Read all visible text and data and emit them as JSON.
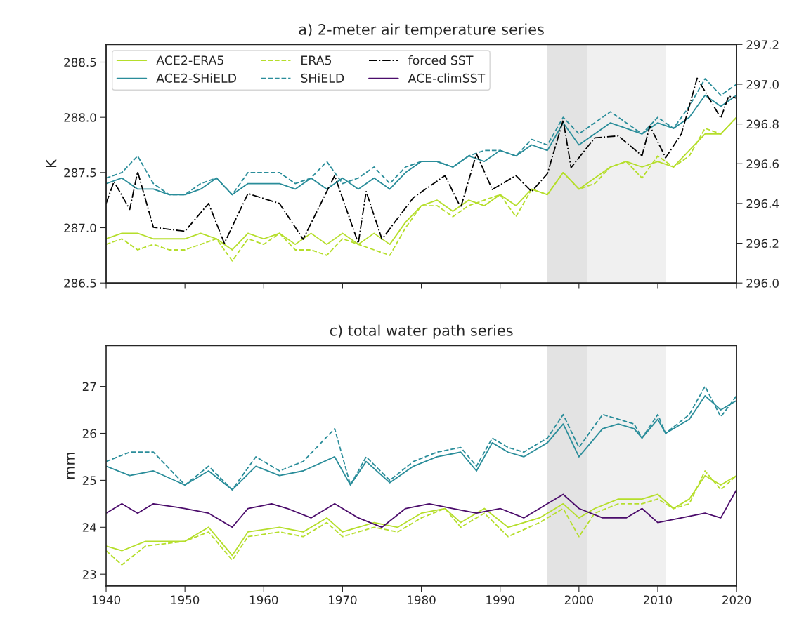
{
  "chart_data": [
    {
      "type": "line",
      "title": "a) 2-meter air temperature series",
      "ylabel": "K",
      "xlim": [
        1940,
        2020
      ],
      "xticks": [
        {
          "value": 1940,
          "label": null
        },
        {
          "value": 1950,
          "label": null
        },
        {
          "value": 1960,
          "label": null
        },
        {
          "value": 1970,
          "label": null
        },
        {
          "value": 1980,
          "label": null
        },
        {
          "value": 1990,
          "label": null
        },
        {
          "value": 2000,
          "label": null
        },
        {
          "value": 2010,
          "label": null
        },
        {
          "value": 2020,
          "label": null
        }
      ],
      "ylim": [
        286.5,
        288.66
      ],
      "yticks": [
        {
          "value": 286.5,
          "label": "286.5"
        },
        {
          "value": 287.0,
          "label": "287.0"
        },
        {
          "value": 287.5,
          "label": "287.5"
        },
        {
          "value": 288.0,
          "label": "288.0"
        },
        {
          "value": 288.5,
          "label": "288.5"
        }
      ],
      "y2lim": [
        296.0,
        297.2
      ],
      "y2ticks": [
        {
          "value": 296.0,
          "label": "296.0"
        },
        {
          "value": 296.2,
          "label": "296.2"
        },
        {
          "value": 296.4,
          "label": "296.4"
        },
        {
          "value": 296.6,
          "label": "296.6"
        },
        {
          "value": 296.8,
          "label": "296.8"
        },
        {
          "value": 297.0,
          "label": "297.0"
        },
        {
          "value": 297.2,
          "label": "297.2"
        }
      ],
      "tick_labels": "y",
      "legend": "top left",
      "grid": false,
      "bands": [
        {
          "axis": "x",
          "from": 1996,
          "to": 2001,
          "color": "#e3e3e3"
        },
        {
          "axis": "x",
          "from": 2001,
          "to": 2011,
          "color": "#f0f0f0"
        }
      ],
      "series": [
        {
          "name": "ACE2-ERA5",
          "color": "#b5de2b",
          "line_style": "solid",
          "x": [
            1940,
            1942,
            1944,
            1946,
            1948,
            1950,
            1952,
            1954,
            1956,
            1958,
            1960,
            1962,
            1964,
            1966,
            1968,
            1970,
            1972,
            1974,
            1976,
            1978,
            1980,
            1982,
            1984,
            1986,
            1988,
            1990,
            1992,
            1994,
            1996,
            1998,
            2000,
            2002,
            2004,
            2006,
            2008,
            2010,
            2012,
            2014,
            2016,
            2018,
            2020
          ],
          "values": [
            286.9,
            286.95,
            286.95,
            286.9,
            286.9,
            286.9,
            286.95,
            286.9,
            286.8,
            286.95,
            286.9,
            286.95,
            286.85,
            286.95,
            286.85,
            286.95,
            286.85,
            286.95,
            286.85,
            287.05,
            287.2,
            287.25,
            287.15,
            287.25,
            287.2,
            287.3,
            287.2,
            287.35,
            287.3,
            287.5,
            287.35,
            287.45,
            287.55,
            287.6,
            287.55,
            287.6,
            287.55,
            287.7,
            287.85,
            287.85,
            288.0
          ]
        },
        {
          "name": "ACE2-SHiELD",
          "color": "#2a8d9a",
          "line_style": "solid",
          "x": [
            1940,
            1942,
            1944,
            1946,
            1948,
            1950,
            1952,
            1954,
            1956,
            1958,
            1960,
            1962,
            1964,
            1966,
            1968,
            1970,
            1972,
            1974,
            1976,
            1978,
            1980,
            1982,
            1984,
            1986,
            1988,
            1990,
            1992,
            1994,
            1996,
            1998,
            2000,
            2002,
            2004,
            2006,
            2008,
            2010,
            2012,
            2014,
            2016,
            2018,
            2020
          ],
          "values": [
            287.4,
            287.45,
            287.35,
            287.35,
            287.3,
            287.3,
            287.35,
            287.45,
            287.3,
            287.4,
            287.4,
            287.4,
            287.35,
            287.45,
            287.35,
            287.45,
            287.35,
            287.45,
            287.35,
            287.5,
            287.6,
            287.6,
            287.55,
            287.65,
            287.6,
            287.7,
            287.65,
            287.75,
            287.7,
            287.95,
            287.75,
            287.85,
            287.95,
            287.9,
            287.85,
            287.95,
            287.9,
            288.0,
            288.2,
            288.1,
            288.2
          ]
        },
        {
          "name": "ERA5",
          "color": "#b5de2b",
          "line_style": "dashed",
          "x": [
            1940,
            1942,
            1944,
            1946,
            1948,
            1950,
            1952,
            1954,
            1956,
            1958,
            1960,
            1962,
            1964,
            1966,
            1968,
            1970,
            1972,
            1974,
            1976,
            1978,
            1980,
            1982,
            1984,
            1986,
            1988,
            1990,
            1992,
            1994,
            1996,
            1998,
            2000,
            2002,
            2004,
            2006,
            2008,
            2010,
            2012,
            2014,
            2016,
            2018,
            2020
          ],
          "values": [
            286.85,
            286.9,
            286.8,
            286.85,
            286.8,
            286.8,
            286.85,
            286.9,
            286.7,
            286.9,
            286.85,
            286.95,
            286.8,
            286.8,
            286.75,
            286.9,
            286.85,
            286.8,
            286.75,
            287.0,
            287.2,
            287.2,
            287.1,
            287.2,
            287.25,
            287.3,
            287.1,
            287.35,
            287.3,
            287.5,
            287.35,
            287.4,
            287.55,
            287.6,
            287.45,
            287.65,
            287.55,
            287.65,
            287.9,
            287.85,
            288.0
          ]
        },
        {
          "name": "SHiELD",
          "color": "#2a8d9a",
          "line_style": "dashed",
          "x": [
            1940,
            1942,
            1944,
            1946,
            1948,
            1950,
            1952,
            1954,
            1956,
            1958,
            1960,
            1962,
            1964,
            1966,
            1968,
            1970,
            1972,
            1974,
            1976,
            1978,
            1980,
            1982,
            1984,
            1986,
            1988,
            1990,
            1992,
            1994,
            1996,
            1998,
            2000,
            2002,
            2004,
            2006,
            2008,
            2010,
            2012,
            2014,
            2016,
            2018,
            2020
          ],
          "values": [
            287.45,
            287.5,
            287.65,
            287.4,
            287.3,
            287.3,
            287.4,
            287.45,
            287.3,
            287.5,
            287.5,
            287.5,
            287.4,
            287.45,
            287.6,
            287.4,
            287.45,
            287.55,
            287.4,
            287.55,
            287.6,
            287.6,
            287.55,
            287.65,
            287.7,
            287.7,
            287.65,
            287.8,
            287.75,
            288.0,
            287.85,
            287.95,
            288.05,
            287.95,
            287.85,
            288.0,
            287.9,
            288.1,
            288.35,
            288.2,
            288.3
          ]
        },
        {
          "name": "forced SST",
          "color": "#000000",
          "line_style": "dashdot",
          "axis": "y2",
          "x": [
            1940,
            1941,
            1943,
            1944,
            1946,
            1950,
            1953,
            1955,
            1958,
            1962,
            1965,
            1969,
            1972,
            1973,
            1975,
            1979,
            1983,
            1985,
            1987,
            1989,
            1992,
            1994,
            1996,
            1998,
            1999,
            2002,
            2005,
            2008,
            2009,
            2011,
            2013,
            2015,
            2018,
            2019,
            2020
          ],
          "values": [
            296.4,
            296.51,
            296.37,
            296.56,
            296.28,
            296.26,
            296.4,
            296.2,
            296.45,
            296.4,
            296.22,
            296.54,
            296.2,
            296.46,
            296.22,
            296.43,
            296.54,
            296.38,
            296.65,
            296.47,
            296.54,
            296.46,
            296.55,
            296.82,
            296.58,
            296.73,
            296.74,
            296.64,
            296.79,
            296.63,
            296.75,
            297.03,
            296.83,
            296.94,
            296.93
          ]
        }
      ]
    },
    {
      "type": "line",
      "title": "c) total water path series",
      "ylabel": "mm",
      "xlim": [
        1940,
        2020
      ],
      "xticks": [
        1940,
        1950,
        1960,
        1970,
        1980,
        1990,
        2000,
        2010,
        2020
      ],
      "ylim": [
        22.75,
        27.87
      ],
      "yticks": [
        23,
        24,
        25,
        26,
        27
      ],
      "grid": false,
      "bands": [
        {
          "axis": "x",
          "from": 1996,
          "to": 2001,
          "color": "#e3e3e3"
        },
        {
          "axis": "x",
          "from": 2001,
          "to": 2011,
          "color": "#f0f0f0"
        }
      ],
      "series": [
        {
          "name": "ACE2-ERA5",
          "color": "#b5de2b",
          "line_style": "solid",
          "x": [
            1940,
            1942,
            1945,
            1950,
            1953,
            1956,
            1958,
            1962,
            1965,
            1968,
            1970,
            1974,
            1977,
            1980,
            1983,
            1985,
            1988,
            1991,
            1995,
            1998,
            2000,
            2002,
            2005,
            2008,
            2010,
            2012,
            2014,
            2016,
            2018,
            2020
          ],
          "values": [
            23.6,
            23.5,
            23.7,
            23.7,
            24.0,
            23.4,
            23.9,
            24.0,
            23.9,
            24.2,
            23.9,
            24.1,
            24.0,
            24.3,
            24.4,
            24.1,
            24.4,
            24.0,
            24.2,
            24.5,
            24.2,
            24.4,
            24.6,
            24.6,
            24.7,
            24.4,
            24.6,
            25.1,
            24.9,
            25.1
          ]
        },
        {
          "name": "ACE2-SHiELD",
          "color": "#2a8d9a",
          "line_style": "solid",
          "x": [
            1940,
            1943,
            1946,
            1950,
            1953,
            1956,
            1959,
            1962,
            1965,
            1969,
            1971,
            1973,
            1976,
            1979,
            1982,
            1985,
            1987,
            1989,
            1991,
            1993,
            1996,
            1998,
            2000,
            2003,
            2005,
            2007,
            2008,
            2010,
            2011,
            2014,
            2016,
            2018,
            2020
          ],
          "values": [
            25.3,
            25.1,
            25.2,
            24.9,
            25.2,
            24.8,
            25.3,
            25.1,
            25.2,
            25.5,
            24.9,
            25.4,
            24.95,
            25.3,
            25.5,
            25.6,
            25.2,
            25.8,
            25.6,
            25.5,
            25.8,
            26.2,
            25.5,
            26.1,
            26.2,
            26.1,
            25.9,
            26.3,
            26.0,
            26.3,
            26.8,
            26.5,
            26.7
          ]
        },
        {
          "name": "ERA5",
          "color": "#b5de2b",
          "line_style": "dashed",
          "x": [
            1940,
            1942,
            1945,
            1950,
            1953,
            1956,
            1958,
            1962,
            1965,
            1968,
            1970,
            1974,
            1977,
            1980,
            1983,
            1985,
            1988,
            1991,
            1995,
            1998,
            2000,
            2002,
            2005,
            2008,
            2010,
            2012,
            2014,
            2016,
            2018,
            2020
          ],
          "values": [
            23.5,
            23.2,
            23.6,
            23.7,
            23.9,
            23.3,
            23.8,
            23.9,
            23.8,
            24.1,
            23.8,
            24.0,
            23.9,
            24.2,
            24.4,
            24.0,
            24.3,
            23.8,
            24.1,
            24.4,
            23.8,
            24.3,
            24.5,
            24.5,
            24.6,
            24.4,
            24.5,
            25.2,
            24.8,
            25.1
          ]
        },
        {
          "name": "SHiELD",
          "color": "#2a8d9a",
          "line_style": "dashed",
          "x": [
            1940,
            1943,
            1946,
            1950,
            1953,
            1956,
            1959,
            1962,
            1965,
            1969,
            1971,
            1973,
            1976,
            1979,
            1982,
            1985,
            1987,
            1989,
            1991,
            1993,
            1996,
            1998,
            2000,
            2003,
            2005,
            2007,
            2008,
            2010,
            2011,
            2014,
            2016,
            2018,
            2020
          ],
          "values": [
            25.4,
            25.6,
            25.6,
            24.9,
            25.3,
            24.8,
            25.5,
            25.2,
            25.4,
            26.1,
            24.9,
            25.5,
            25.0,
            25.4,
            25.6,
            25.7,
            25.3,
            25.9,
            25.7,
            25.6,
            25.9,
            26.4,
            25.7,
            26.4,
            26.3,
            26.2,
            25.9,
            26.4,
            26.0,
            26.4,
            27.0,
            26.35,
            26.8
          ]
        },
        {
          "name": "ACE-climSST",
          "color": "#4b0c6b",
          "line_style": "solid",
          "x": [
            1940,
            1942,
            1944,
            1946,
            1950,
            1953,
            1956,
            1958,
            1961,
            1963,
            1966,
            1969,
            1972,
            1975,
            1978,
            1981,
            1984,
            1987,
            1990,
            1993,
            1996,
            1998,
            2000,
            2003,
            2006,
            2008,
            2010,
            2013,
            2016,
            2018,
            2020
          ],
          "values": [
            24.3,
            24.5,
            24.3,
            24.5,
            24.4,
            24.3,
            24.0,
            24.4,
            24.5,
            24.4,
            24.2,
            24.5,
            24.2,
            24.0,
            24.4,
            24.5,
            24.4,
            24.3,
            24.4,
            24.2,
            24.5,
            24.7,
            24.4,
            24.2,
            24.2,
            24.4,
            24.1,
            24.2,
            24.3,
            24.2,
            24.8
          ]
        }
      ]
    }
  ]
}
